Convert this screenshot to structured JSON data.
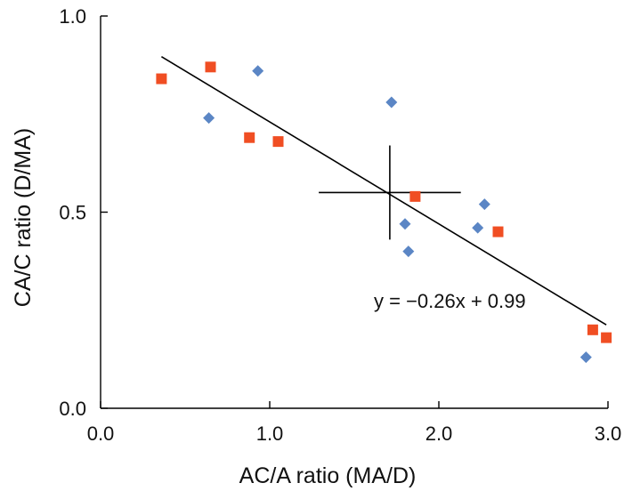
{
  "chart_data": {
    "type": "scatter",
    "xlabel": "AC/A ratio (MA/D)",
    "ylabel": "CA/C ratio (D/MA)",
    "xlim": [
      0,
      3
    ],
    "ylim": [
      0,
      1
    ],
    "x_ticks": [
      "0.0",
      "1.0",
      "2.0",
      "3.0"
    ],
    "y_ticks": [
      "0.0",
      "0.5",
      "1.0"
    ],
    "grid": false,
    "legend": "none",
    "series": [
      {
        "marker": "diamond",
        "color": "#5B86C5",
        "points": [
          [
            0.64,
            0.74
          ],
          [
            0.93,
            0.86
          ],
          [
            1.72,
            0.78
          ],
          [
            1.8,
            0.47
          ],
          [
            1.82,
            0.4
          ],
          [
            2.23,
            0.46
          ],
          [
            2.27,
            0.52
          ],
          [
            2.87,
            0.13
          ]
        ]
      },
      {
        "marker": "square",
        "color": "#F04E23",
        "points": [
          [
            0.36,
            0.84
          ],
          [
            0.65,
            0.87
          ],
          [
            0.88,
            0.69
          ],
          [
            1.05,
            0.68
          ],
          [
            1.86,
            0.54
          ],
          [
            2.35,
            0.45
          ],
          [
            2.91,
            0.2
          ],
          [
            2.99,
            0.18
          ]
        ]
      }
    ],
    "regression": {
      "equation": "y = −0.26x + 0.99",
      "slope": -0.26,
      "intercept": 0.99,
      "x_range": [
        0.36,
        2.99
      ],
      "line_color": "#000000"
    },
    "mean_marker": {
      "x": 1.71,
      "y": 0.55,
      "x_extent": [
        1.29,
        2.13
      ],
      "y_extent": [
        0.43,
        0.67
      ],
      "color": "#000000"
    }
  }
}
